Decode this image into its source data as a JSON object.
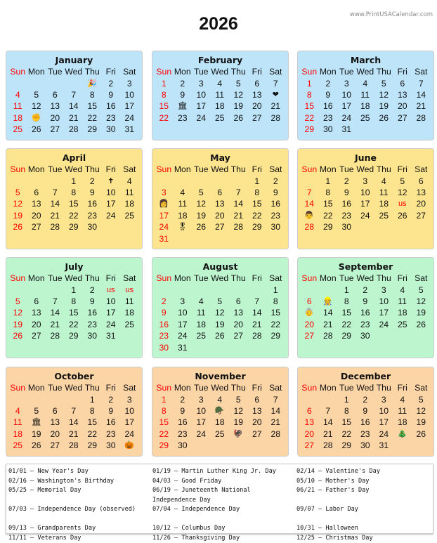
{
  "site": "www.PrintUSACalendar.com",
  "year": "2026",
  "weekdays": [
    "Sun",
    "Mon",
    "Tue",
    "Wed",
    "Thu",
    "Fri",
    "Sat"
  ],
  "colors": {
    "q1": "#bde4f9",
    "q2": "#fce58e",
    "q3": "#bdf5cf",
    "q4": "#fcd5a7",
    "sunday": "#ff0000"
  },
  "months": [
    "January",
    "February",
    "March",
    "April",
    "May",
    "June",
    "July",
    "August",
    "September",
    "October",
    "November",
    "December"
  ],
  "markers": {
    "1-1": "🎉",
    "1-19": "✊",
    "2-14": "❤",
    "2-16": "🏛",
    "4-3": "✝",
    "5-10": "👩",
    "5-25": "🎖",
    "6-19": "us",
    "6-21": "👨",
    "7-3": "us",
    "7-4": "us",
    "9-7": "👷",
    "9-13": "👵",
    "10-12": "🏛",
    "10-31": "🎃",
    "11-11": "🪖",
    "11-26": "🦃",
    "12-25": "🎄"
  },
  "holidays": [
    [
      "01/01 – New Year's Day",
      "01/19 – Martin Luther King Jr. Day",
      "02/14 – Valentine's Day"
    ],
    [
      "02/16 – Washington's Birthday",
      "04/03 – Good Friday",
      "05/10 – Mother's Day"
    ],
    [
      "05/25 – Memorial Day",
      "06/19 – Juneteenth National Independence Day",
      "06/21 – Father's Day"
    ],
    [
      "07/03 – Independence Day (observed)",
      "07/04 – Independence Day",
      "09/07 – Labor Day"
    ],
    [
      "09/13 – Grandparents Day",
      "10/12 – Columbus Day",
      "10/31 – Halloween"
    ],
    [
      "11/11 – Veterans Day",
      "11/26 – Thanksgiving Day",
      "12/25 – Christmas Day"
    ]
  ]
}
